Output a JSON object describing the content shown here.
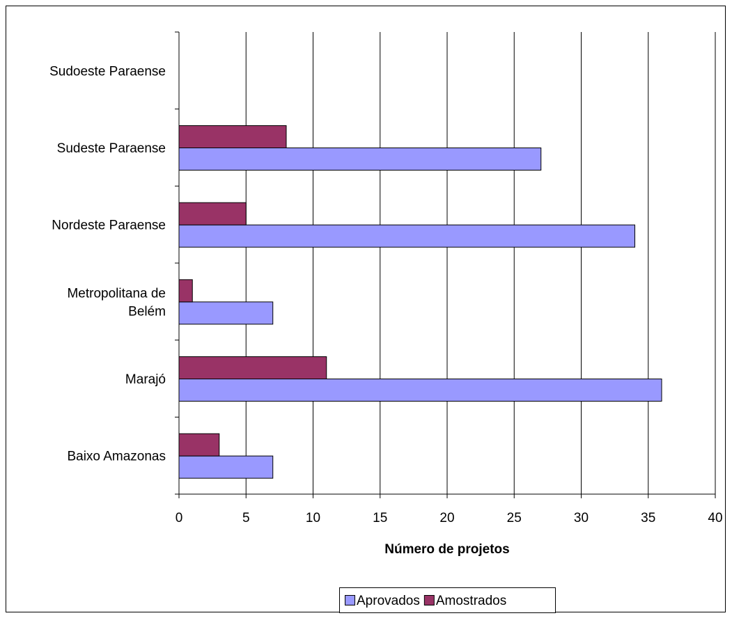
{
  "chart_data": {
    "type": "bar",
    "orientation": "horizontal",
    "categories": [
      [
        "Sudoeste Paraense"
      ],
      [
        "Sudeste Paraense"
      ],
      [
        "Nordeste Paraense"
      ],
      [
        "Metropolitana de",
        "Belém"
      ],
      [
        "Marajó"
      ],
      [
        "Baixo Amazonas"
      ]
    ],
    "series": [
      {
        "name": "Aprovados",
        "color": "#9999ff",
        "values": [
          0,
          27,
          34,
          7,
          36,
          7
        ]
      },
      {
        "name": "Amostrados",
        "color": "#993366",
        "values": [
          0,
          8,
          5,
          1,
          11,
          3
        ]
      }
    ],
    "xlabel": "Número de projetos",
    "xlim": [
      0,
      40
    ],
    "xticks": [
      "0",
      "5",
      "10",
      "15",
      "20",
      "25",
      "30",
      "35",
      "40"
    ],
    "grid": "vertical",
    "legend": "bottom"
  }
}
